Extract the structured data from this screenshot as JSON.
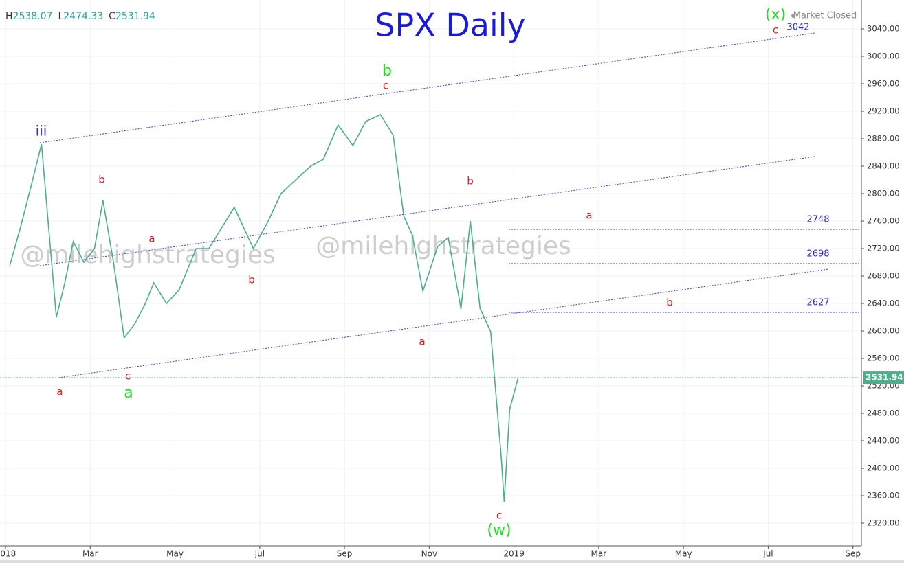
{
  "chart_data": {
    "type": "line",
    "title": "SPX Daily",
    "ohlc": [
      {
        "label": "H",
        "value": 2538.07
      },
      {
        "label": "L",
        "value": 2474.33
      },
      {
        "label": "C",
        "value": 2531.94
      }
    ],
    "status": "Market Closed",
    "watermark": "@milehighstrategies",
    "x": [
      0.1,
      0.35,
      0.6,
      0.85,
      1.2,
      1.4,
      1.6,
      1.85,
      2.1,
      2.3,
      2.55,
      2.8,
      3.05,
      3.3,
      3.5,
      3.8,
      4.1,
      4.5,
      4.8,
      5.1,
      5.4,
      5.85,
      6.2,
      6.5,
      6.85,
      7.2,
      7.5,
      7.85,
      8.2,
      8.5,
      8.85,
      9.15,
      9.4,
      9.6,
      9.85,
      10.2,
      10.45,
      10.75,
      10.97,
      11.2,
      11.45,
      11.7,
      11.77,
      11.9,
      12.1
    ],
    "series": [
      {
        "name": "SPX",
        "color": "#4caf8a",
        "values": [
          2695,
          2750,
          2810,
          2872,
          2620,
          2670,
          2730,
          2700,
          2720,
          2790,
          2700,
          2590,
          2610,
          2640,
          2670,
          2640,
          2660,
          2720,
          2720,
          2750,
          2780,
          2720,
          2760,
          2800,
          2820,
          2840,
          2850,
          2900,
          2870,
          2905,
          2915,
          2885,
          2767,
          2740,
          2658,
          2723,
          2736,
          2632,
          2760,
          2633,
          2599,
          2416,
          2351,
          2486,
          2532
        ]
      }
    ],
    "annotations": [
      "iii",
      "b",
      "a",
      "b",
      "c",
      "a",
      "a",
      "b",
      "c",
      "a",
      "b",
      "c",
      "(w)",
      "a",
      "b",
      "(x)",
      "c"
    ],
    "levels": [
      2748,
      2698,
      2627
    ],
    "target": 3042,
    "xlim": [
      -0.13,
      20.2
    ],
    "ylim": [
      2287,
      3082
    ],
    "xticks": [
      {
        "value": 0,
        "label": "2018"
      },
      {
        "value": 2,
        "label": "Mar"
      },
      {
        "value": 4,
        "label": "May"
      },
      {
        "value": 6,
        "label": "Jul"
      },
      {
        "value": 8,
        "label": "Sep"
      },
      {
        "value": 10,
        "label": "Nov"
      },
      {
        "value": 12,
        "label": "2019"
      },
      {
        "value": 14,
        "label": "Mar"
      },
      {
        "value": 16,
        "label": "May"
      },
      {
        "value": 18,
        "label": "Jul"
      },
      {
        "value": 20,
        "label": "Sep"
      }
    ],
    "yticks": [
      {
        "value": 2320,
        "label": "2320.00"
      },
      {
        "value": 2360,
        "label": "2360.00"
      },
      {
        "value": 2400,
        "label": "2400.00"
      },
      {
        "value": 2440,
        "label": "2440.00"
      },
      {
        "value": 2480,
        "label": "2480.00"
      },
      {
        "value": 2520,
        "label": "2520.00"
      },
      {
        "value": 2560,
        "label": "2560.00"
      },
      {
        "value": 2600,
        "label": "2600.00"
      },
      {
        "value": 2640,
        "label": "2640.00"
      },
      {
        "value": 2680,
        "label": "2680.00"
      },
      {
        "value": 2720,
        "label": "2720.00"
      },
      {
        "value": 2760,
        "label": "2760.00"
      },
      {
        "value": 2800,
        "label": "2800.00"
      },
      {
        "value": 2840,
        "label": "2840.00"
      },
      {
        "value": 2880,
        "label": "2880.00"
      },
      {
        "value": 2920,
        "label": "2920.00"
      },
      {
        "value": 2960,
        "label": "2960.00"
      },
      {
        "value": 3000,
        "label": "3000.00"
      },
      {
        "value": 3040,
        "label": "3040.00"
      }
    ],
    "grid": true
  }
}
